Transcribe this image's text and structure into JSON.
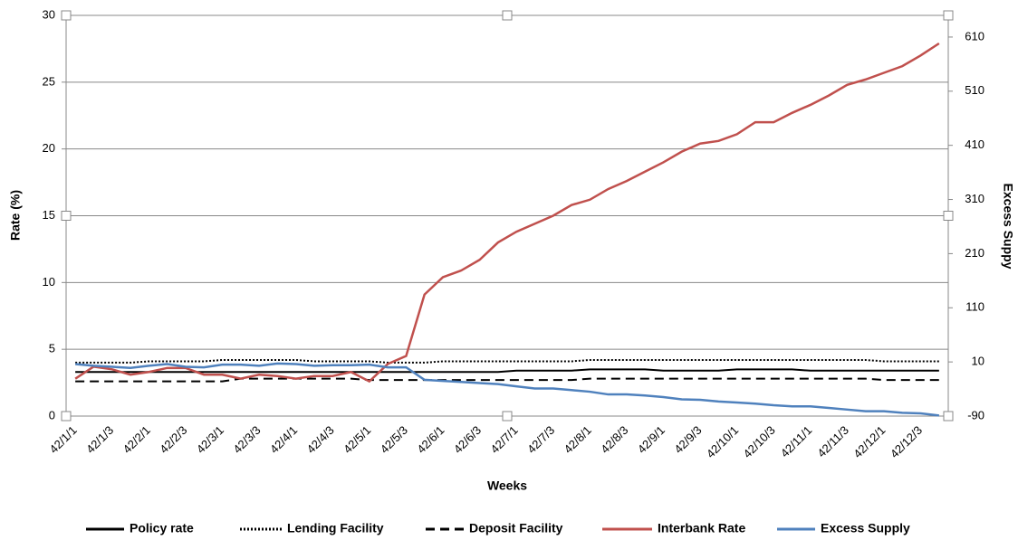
{
  "chart_data": {
    "type": "line",
    "x_label": "Weeks",
    "y_label": "Rate (%)",
    "y2_label": "Excess Suppy",
    "categories": [
      "42/1/1",
      null,
      "42/1/3",
      null,
      "42/2/1",
      null,
      "42/2/3",
      null,
      "42/3/1",
      null,
      "42/3/3",
      null,
      "42/4/1",
      null,
      "42/4/3",
      null,
      "42/5/1",
      null,
      "42/5/3",
      null,
      "42/6/1",
      null,
      "42/6/3",
      null,
      "42/7/1",
      null,
      "42/7/3",
      null,
      "42/8/1",
      null,
      "42/8/3",
      null,
      "42/9/1",
      null,
      "42/9/3",
      null,
      "42/10/1",
      null,
      "42/10/3",
      null,
      "42/11/1",
      null,
      "42/11/3",
      null,
      "42/12/1",
      null,
      "42/12/3",
      null
    ],
    "ylim": [
      0,
      30
    ],
    "yticks": [
      0,
      5,
      10,
      15,
      20,
      25,
      30
    ],
    "y2lim": [
      -90,
      650
    ],
    "y2ticks": [
      -90,
      10,
      110,
      210,
      310,
      410,
      510,
      610
    ],
    "grid": true,
    "series": [
      {
        "name": "Policy rate",
        "color": "#000000",
        "dash": "solid",
        "values": [
          3.3,
          3.3,
          3.3,
          3.3,
          3.3,
          3.3,
          3.3,
          3.3,
          3.3,
          3.3,
          3.3,
          3.3,
          3.3,
          3.3,
          3.3,
          3.3,
          3.3,
          3.3,
          3.3,
          3.3,
          3.3,
          3.3,
          3.3,
          3.3,
          3.4,
          3.4,
          3.4,
          3.4,
          3.5,
          3.5,
          3.5,
          3.5,
          3.4,
          3.4,
          3.4,
          3.4,
          3.5,
          3.5,
          3.5,
          3.5,
          3.4,
          3.4,
          3.4,
          3.4,
          3.4,
          3.4,
          3.4,
          3.4
        ]
      },
      {
        "name": "Lending Facility",
        "color": "#000000",
        "dash": "dotted",
        "values": [
          4.0,
          4.0,
          4.0,
          4.0,
          4.1,
          4.1,
          4.1,
          4.1,
          4.2,
          4.2,
          4.2,
          4.2,
          4.2,
          4.1,
          4.1,
          4.1,
          4.1,
          4.0,
          4.0,
          4.0,
          4.1,
          4.1,
          4.1,
          4.1,
          4.1,
          4.1,
          4.1,
          4.1,
          4.2,
          4.2,
          4.2,
          4.2,
          4.2,
          4.2,
          4.2,
          4.2,
          4.2,
          4.2,
          4.2,
          4.2,
          4.2,
          4.2,
          4.2,
          4.2,
          4.1,
          4.1,
          4.1,
          4.1
        ]
      },
      {
        "name": "Deposit Facility",
        "color": "#000000",
        "dash": "dashed",
        "values": [
          2.6,
          2.6,
          2.6,
          2.6,
          2.6,
          2.6,
          2.6,
          2.6,
          2.6,
          2.8,
          2.8,
          2.8,
          2.8,
          2.8,
          2.8,
          2.8,
          2.7,
          2.7,
          2.7,
          2.7,
          2.7,
          2.7,
          2.7,
          2.7,
          2.7,
          2.7,
          2.7,
          2.7,
          2.8,
          2.8,
          2.8,
          2.8,
          2.8,
          2.8,
          2.8,
          2.8,
          2.8,
          2.8,
          2.8,
          2.8,
          2.8,
          2.8,
          2.8,
          2.8,
          2.7,
          2.7,
          2.7,
          2.7
        ]
      },
      {
        "name": "Interbank Rate",
        "color": "#c0504d",
        "dash": "solid",
        "values": [
          2.8,
          3.7,
          3.5,
          3.1,
          3.3,
          3.6,
          3.6,
          3.1,
          3.1,
          2.8,
          3.1,
          3.0,
          2.8,
          3.0,
          3.0,
          3.3,
          2.6,
          3.9,
          4.5,
          9.1,
          10.4,
          10.9,
          11.7,
          13.0,
          13.8,
          14.4,
          15.0,
          15.8,
          16.2,
          17.0,
          17.6,
          18.3,
          19.0,
          19.8,
          20.4,
          20.6,
          21.1,
          22.0,
          22.0,
          22.7,
          23.3,
          24.0,
          24.8,
          25.2,
          25.7,
          26.2,
          27.0,
          27.9
        ]
      },
      {
        "name": "Excess Supply",
        "color": "#4f81bd",
        "dash": "solid",
        "axis": "y2",
        "values": [
          6,
          3,
          1,
          -1,
          3,
          6,
          1,
          0,
          5,
          5,
          3,
          7,
          6,
          3,
          4,
          4,
          5,
          0,
          0,
          -23,
          -25,
          -27,
          -29,
          -31,
          -35,
          -39,
          -39,
          -42,
          -45,
          -50,
          -50,
          -52,
          -55,
          -59,
          -60,
          -63,
          -65,
          -67,
          -70,
          -72,
          -72,
          -75,
          -78,
          -81,
          -81,
          -84,
          -85,
          -89
        ]
      }
    ]
  }
}
